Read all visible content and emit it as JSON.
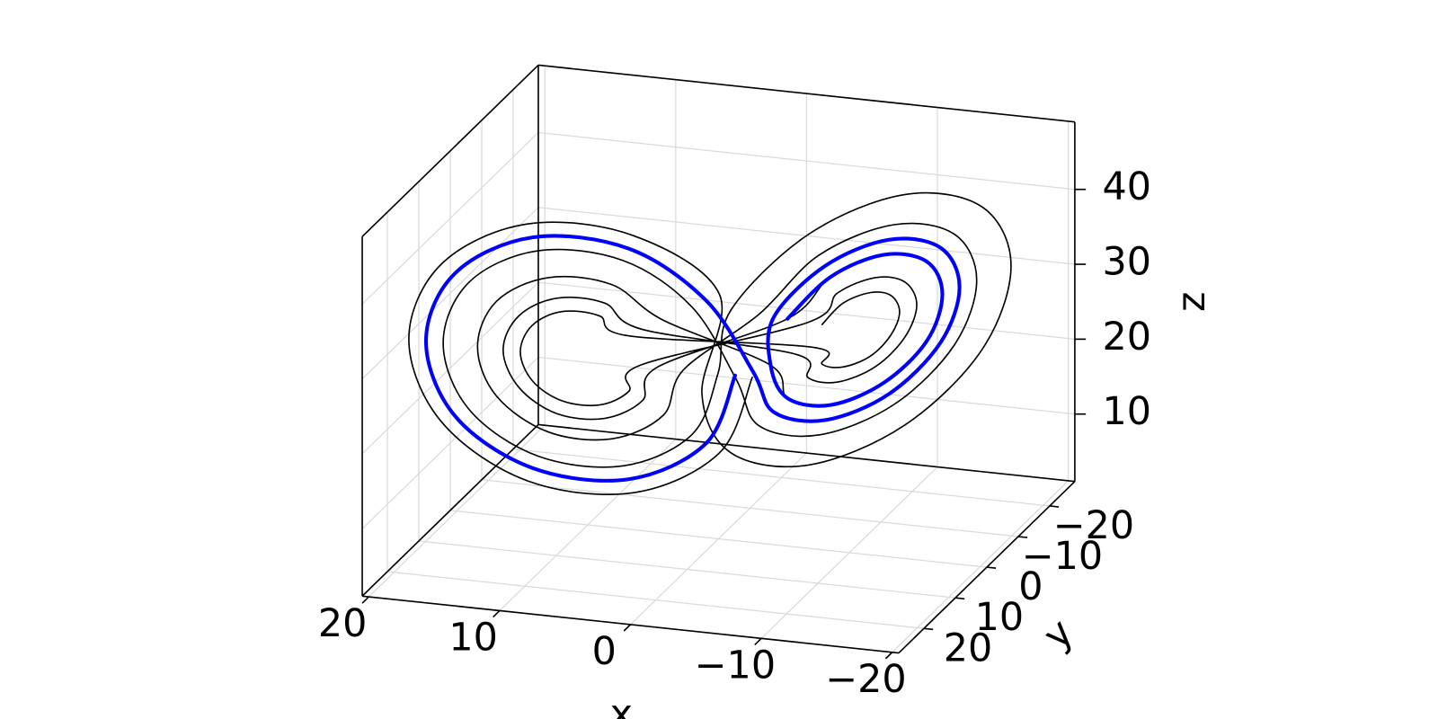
{
  "chart_data": {
    "type": "line3d",
    "xlabel": "x",
    "ylabel": "y",
    "zlabel": "z",
    "xlim": [
      20.5,
      -20.5
    ],
    "ylim": [
      28,
      -28
    ],
    "zlim": [
      1,
      49
    ],
    "xticks": [
      20,
      10,
      0,
      {
        "value": -10,
        "label": "−10"
      },
      {
        "value": -20,
        "label": "−20"
      }
    ],
    "yticks": [
      {
        "value": -20,
        "label": "−20"
      },
      {
        "value": -10,
        "label": "−10"
      },
      0,
      10,
      20
    ],
    "zticks": [
      10,
      20,
      30,
      40
    ],
    "grid": true,
    "series": [
      {
        "color": "#000000",
        "width": 1.6,
        "x": [
          -1.5,
          0.4,
          5.4,
          11.6,
          16.6,
          18.5,
          16.6,
          11.6,
          5.4,
          0.4,
          0.5,
          -1.2,
          -5.7,
          -11.3,
          -15.8,
          -17.5,
          -15.8,
          -11.3,
          -5.7,
          -1.2,
          0.5,
          2.0,
          6.0,
          11.0,
          15.0,
          16.5,
          15.0,
          11.0,
          6.0,
          2.0,
          -1.5,
          -2.8,
          -6.3,
          -10.7,
          -14.2,
          -15.5,
          -14.2,
          -10.7,
          -6.3,
          -2.8,
          2.5,
          3.7,
          6.7,
          10.4,
          13.4,
          14.5,
          13.4,
          10.4,
          6.7,
          3.7,
          -3.5,
          -4.5,
          -7.0,
          -10.1,
          -12.6,
          -13.5,
          -12.6,
          -10.1,
          -7.0,
          -4.5,
          4.0,
          4.9,
          7.1,
          9.9,
          12.1,
          13.0,
          12.1,
          9.9,
          7.1,
          4.9,
          -5.0,
          -5.7,
          -7.4,
          -9.6,
          -11.3,
          -12.0,
          -11.3,
          -9.6,
          -7.4,
          -5.7,
          5.0,
          5.7,
          7.4,
          9.6,
          11.3,
          12.0,
          11.3,
          9.6,
          7.4,
          5.7,
          -6.0,
          -6.5,
          -7.7,
          -9.3,
          -10.5,
          -11.0,
          -10.5,
          -9.3,
          -7.7,
          -6.5
        ],
        "y": [
          -4.5,
          -2.0,
          4.5,
          12.5,
          19.0,
          21.5,
          19.0,
          12.5,
          4.5,
          -2.0,
          3.2,
          1.0,
          -4.9,
          -12.1,
          -18.0,
          -20.2,
          -18.0,
          -12.1,
          -4.9,
          1.0,
          -1.9,
          0.1,
          5.3,
          11.7,
          16.9,
          18.9,
          16.9,
          11.7,
          5.3,
          0.1,
          0.6,
          -1.1,
          -5.7,
          -11.3,
          -15.9,
          -17.6,
          -15.9,
          -11.3,
          -5.7,
          -1.1,
          0.7,
          2.2,
          6.1,
          10.9,
          14.8,
          16.3,
          14.8,
          10.9,
          6.1,
          2.2,
          -2.0,
          -3.2,
          -6.5,
          -10.5,
          -13.8,
          -15.0,
          -13.8,
          -10.5,
          -6.5,
          -3.2,
          2.7,
          3.8,
          6.7,
          10.3,
          13.2,
          14.4,
          13.2,
          10.3,
          6.7,
          3.8,
          -4.0,
          -4.8,
          -7.1,
          -9.9,
          -12.2,
          -13.1,
          -12.2,
          -9.9,
          -7.1,
          -4.8,
          4.0,
          4.8,
          7.1,
          9.9,
          12.2,
          13.1,
          12.2,
          9.9,
          7.1,
          4.8,
          -5.3,
          -5.9,
          -7.5,
          -9.5,
          -11.1,
          -11.8,
          -11.1,
          -9.5,
          -7.5,
          -5.9
        ],
        "z": [
          21,
          11.6,
          8.0,
          11.7,
          21.3,
          33,
          42.4,
          46.0,
          42.3,
          32.7,
          21.6,
          13.1,
          9.9,
          13.3,
          21.8,
          32.4,
          40.9,
          44.1,
          40.7,
          32.2,
          22.2,
          14.6,
          11.8,
          14.8,
          22.4,
          31.8,
          39.4,
          42.2,
          39.2,
          31.6,
          22.8,
          16.2,
          13.7,
          16.3,
          23.0,
          31.2,
          37.8,
          40.3,
          37.7,
          31.0,
          23.4,
          17.7,
          15.6,
          17.8,
          23.6,
          30.6,
          36.3,
          38.4,
          36.2,
          30.4,
          24.0,
          19.3,
          17.5,
          19.4,
          24.1,
          30.0,
          34.7,
          36.5,
          34.6,
          29.9,
          24.3,
          20.1,
          18.5,
          20.1,
          24.4,
          29.7,
          33.9,
          35.5,
          33.9,
          29.6,
          24.9,
          21.6,
          20.4,
          21.7,
          25.0,
          29.1,
          32.4,
          33.6,
          32.3,
          29.0,
          24.9,
          21.6,
          20.4,
          21.7,
          25.0,
          29.1,
          32.4,
          33.6,
          32.3,
          29.0,
          25.5,
          23.1,
          22.3,
          23.2,
          25.6,
          28.5,
          30.9,
          31.7,
          30.8,
          28.4
        ]
      },
      {
        "color": "#0000ff",
        "width": 4,
        "x": [
          -0.5,
          1.2,
          5.7,
          11.3,
          15.8,
          17.5,
          15.8,
          11.3,
          5.7,
          1.2,
          -2.5,
          -3.7,
          -6.7,
          -10.4,
          -13.4,
          -14.5,
          -13.4,
          -10.4,
          -6.7,
          -3.7,
          -3.5,
          -4.5,
          -7.0,
          -10.1,
          -12.6,
          -13.5,
          -12.6,
          -10.1,
          -7.0,
          -4.5
        ],
        "y": [
          -3.2,
          -1.0,
          4.9,
          12.1,
          18.0,
          20.2,
          18.0,
          12.1,
          4.9,
          -1.0,
          -0.7,
          -2.2,
          -6.1,
          -10.9,
          -14.8,
          -16.3,
          -14.8,
          -10.9,
          -6.1,
          -2.2,
          -2.0,
          -3.2,
          -6.5,
          -10.5,
          -13.8,
          -15.0,
          -13.8,
          -10.5,
          -6.5,
          -3.2
        ],
        "z": [
          21.6,
          13.1,
          9.9,
          13.3,
          21.8,
          32.4,
          40.9,
          44.1,
          40.7,
          32.2,
          23.4,
          17.7,
          15.6,
          17.8,
          23.6,
          30.6,
          36.3,
          38.4,
          36.2,
          30.4,
          24.0,
          19.3,
          17.5,
          19.4,
          24.1,
          30.0,
          34.7,
          36.5,
          34.6,
          29.9
        ]
      }
    ]
  }
}
